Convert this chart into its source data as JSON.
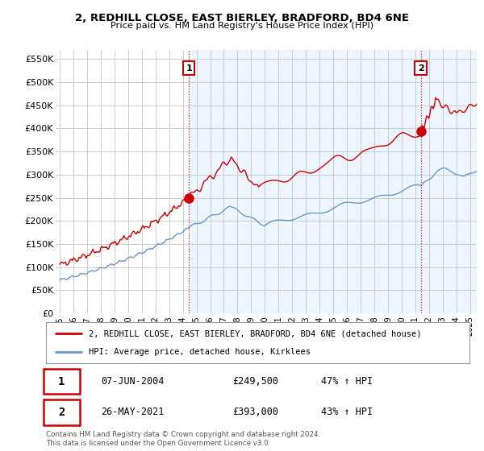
{
  "title1": "2, REDHILL CLOSE, EAST BIERLEY, BRADFORD, BD4 6NE",
  "title2": "Price paid vs. HM Land Registry's House Price Index (HPI)",
  "ylabel_ticks": [
    "£0",
    "£50K",
    "£100K",
    "£150K",
    "£200K",
    "£250K",
    "£300K",
    "£350K",
    "£400K",
    "£450K",
    "£500K",
    "£550K"
  ],
  "ytick_vals": [
    0,
    50000,
    100000,
    150000,
    200000,
    250000,
    300000,
    350000,
    400000,
    450000,
    500000,
    550000
  ],
  "ylim": [
    0,
    570000
  ],
  "xlim_start": 1994.7,
  "xlim_end": 2025.5,
  "xtick_years": [
    1995,
    1996,
    1997,
    1998,
    1999,
    2000,
    2001,
    2002,
    2003,
    2004,
    2005,
    2006,
    2007,
    2008,
    2009,
    2010,
    2011,
    2012,
    2013,
    2014,
    2015,
    2016,
    2017,
    2018,
    2019,
    2020,
    2021,
    2022,
    2023,
    2024,
    2025
  ],
  "legend_line1": "2, REDHILL CLOSE, EAST BIERLEY, BRADFORD, BD4 6NE (detached house)",
  "legend_line2": "HPI: Average price, detached house, Kirklees",
  "sale1_date": "07-JUN-2004",
  "sale1_price": "£249,500",
  "sale1_hpi": "47% ↑ HPI",
  "sale1_x": 2004.44,
  "sale1_y": 249500,
  "sale2_date": "26-MAY-2021",
  "sale2_price": "£393,000",
  "sale2_hpi": "43% ↑ HPI",
  "sale2_x": 2021.4,
  "sale2_y": 393000,
  "footer": "Contains HM Land Registry data © Crown copyright and database right 2024.\nThis data is licensed under the Open Government Licence v3.0.",
  "red_color": "#cc0000",
  "blue_color": "#6699cc",
  "blue_fill": "#ddeeff",
  "grid_color": "#cccccc",
  "bg_color": "#ffffff",
  "shade_color": "#ddeeff"
}
